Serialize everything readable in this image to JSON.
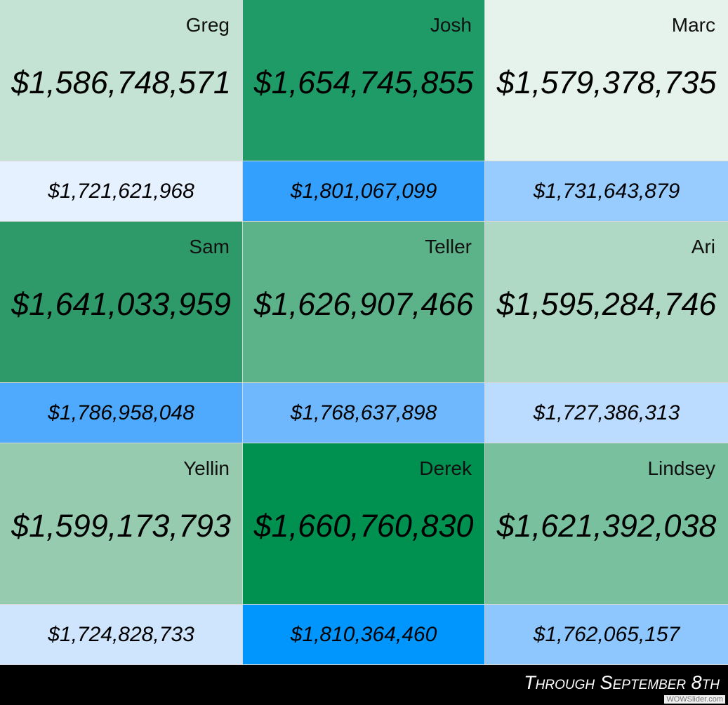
{
  "cells": [
    {
      "name": "Greg",
      "total": "$1,586,748,571",
      "color": "#c5e3d4",
      "sub": "$1,721,621,968",
      "sub_color": "#e5f1fe"
    },
    {
      "name": "Josh",
      "total": "$1,654,745,855",
      "color": "#1f9b67",
      "sub": "$1,801,067,099",
      "sub_color": "#33a0fe"
    },
    {
      "name": "Marc",
      "total": "$1,579,378,735",
      "color": "#e6f3ec",
      "sub": "$1,731,643,879",
      "sub_color": "#99ccfe"
    },
    {
      "name": "Sam",
      "total": "$1,641,033,959",
      "color": "#2e9a6a",
      "sub": "$1,786,958,048",
      "sub_color": "#4faafe"
    },
    {
      "name": "Teller",
      "total": "$1,626,907,466",
      "color": "#5cb38a",
      "sub": "$1,768,637,898",
      "sub_color": "#6fb8fe"
    },
    {
      "name": "Ari",
      "total": "$1,595,284,746",
      "color": "#afd9c4",
      "sub": "$1,727,386,313",
      "sub_color": "#bbdcfe"
    },
    {
      "name": "Yellin",
      "total": "$1,599,173,793",
      "color": "#96cbb0",
      "sub": "$1,724,828,733",
      "sub_color": "#cfe5fe"
    },
    {
      "name": "Derek",
      "total": "$1,660,760,830",
      "color": "#009150",
      "sub": "$1,810,364,460",
      "sub_color": "#0096fe"
    },
    {
      "name": "Lindsey",
      "total": "$1,621,392,038",
      "color": "#79c19e",
      "sub": "$1,762,065,157",
      "sub_color": "#8ec6fe"
    }
  ],
  "footer": "Through September 8th",
  "watermark": "WOWSlider.com"
}
